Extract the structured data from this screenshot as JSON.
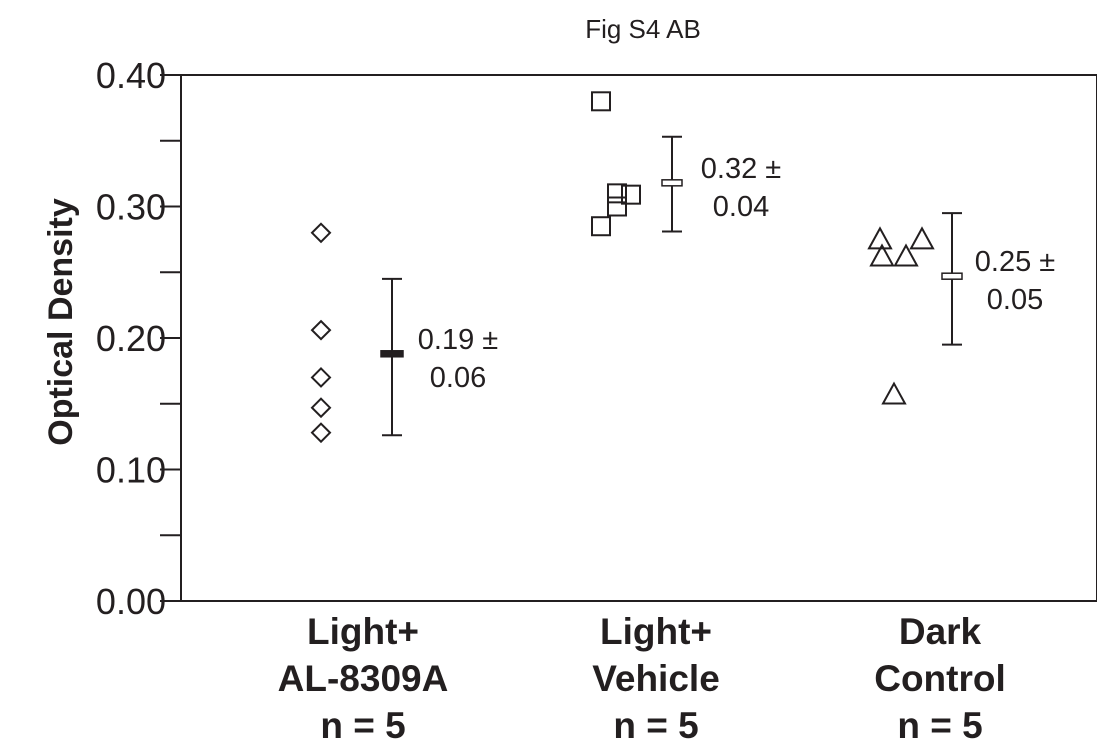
{
  "chart_data": {
    "type": "scatter",
    "title": "Fig S4 AB",
    "ylabel": "Optical Density",
    "xlabel": "",
    "ylim": [
      0,
      0.4
    ],
    "grid": false,
    "yticks": [
      {
        "value": 0.0,
        "label": "0.00"
      },
      {
        "value": 0.1,
        "label": "0.10"
      },
      {
        "value": 0.2,
        "label": "0.20"
      },
      {
        "value": 0.3,
        "label": "0.30"
      },
      {
        "value": 0.4,
        "label": "0.40"
      }
    ],
    "yminor": [
      0.05,
      0.15,
      0.25,
      0.35
    ],
    "groups": [
      {
        "id": "al8309a",
        "label_lines": [
          "Light+",
          "AL-8309A",
          "n = 5"
        ],
        "marker": "diamond",
        "points": [
          0.28,
          0.206,
          0.17,
          0.147,
          0.128
        ],
        "mean": 0.188,
        "error_low": 0.126,
        "error_high": 0.245,
        "annotation_lines": [
          "0.19 ±",
          "0.06"
        ]
      },
      {
        "id": "vehicle",
        "label_lines": [
          "Light+",
          "Vehicle",
          "n = 5"
        ],
        "marker": "square",
        "points": [
          0.38,
          0.31,
          0.309,
          0.3,
          0.285
        ],
        "mean": 0.318,
        "error_low": 0.281,
        "error_high": 0.353,
        "annotation_lines": [
          "0.32 ±",
          "0.04"
        ]
      },
      {
        "id": "dark",
        "label_lines": [
          "Dark",
          "Control",
          "n = 5"
        ],
        "marker": "triangle",
        "points": [
          0.275,
          0.275,
          0.262,
          0.262,
          0.157
        ],
        "mean": 0.247,
        "error_low": 0.195,
        "error_high": 0.295,
        "annotation_lines": [
          "0.25 ±",
          "0.05"
        ]
      }
    ]
  }
}
